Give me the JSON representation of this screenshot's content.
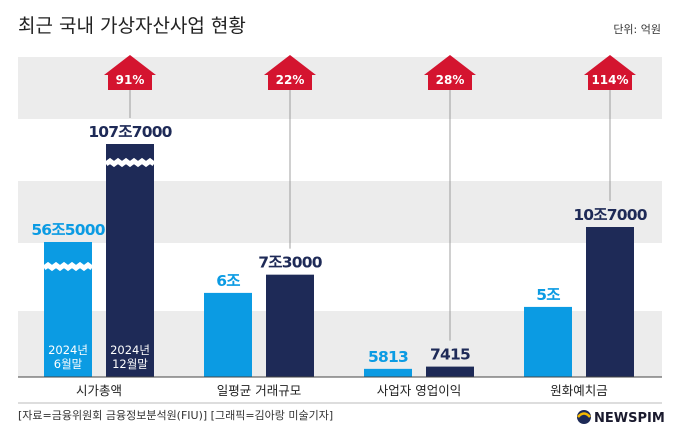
{
  "title": "최근 국내 가상자산사업 현황",
  "unit": "단위: 억원",
  "source": "[자료=금융위원회 금융정보분석원(FIU)] [그래픽=김아랑 미술기자]",
  "logo": "NEWSPIM",
  "chart_data": {
    "type": "bar",
    "title": "최근 국내 가상자산사업 현황",
    "unit": "억원",
    "categories": [
      "시가총액",
      "일평균 거래규모",
      "사업자 영업이익",
      "원화예치금"
    ],
    "series": [
      {
        "name": "2024년 6월말",
        "color": "#0b9be3",
        "values": [
          565000,
          60000,
          5813,
          50000
        ],
        "labels": [
          "56조5000",
          "6조",
          "5813",
          "5조"
        ]
      },
      {
        "name": "2024년 12월말",
        "color": "#1e2a57",
        "values": [
          1077000,
          73000,
          7415,
          107000
        ],
        "labels": [
          "107조7000",
          "7조3000",
          "7415",
          "10조7000"
        ]
      }
    ],
    "growth": [
      "91%",
      "22%",
      "28%",
      "114%"
    ],
    "axis_break_category": "시가총액",
    "bar_labels": [
      "2024년",
      "6월말",
      "2024년",
      "12월말"
    ],
    "grid": false,
    "legend": "none"
  }
}
